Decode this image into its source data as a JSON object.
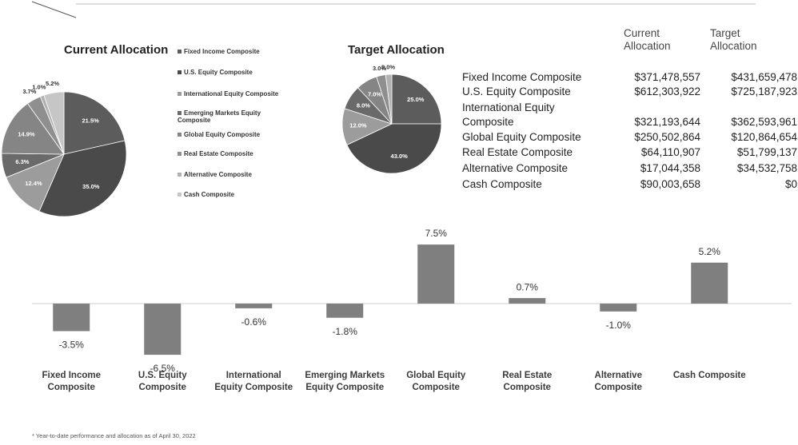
{
  "footnote": "* Year-to-date performance and allocation as of April 30, 2022",
  "table": {
    "columns": [
      "Current Allocation",
      "Target Allocation"
    ],
    "rows": [
      [
        "Fixed Income Composite",
        "$371,478,557",
        "$431,659,478"
      ],
      [
        "U.S. Equity Composite",
        "$612,303,922",
        "$725,187,923"
      ],
      [
        "International Equity Composite",
        "$321,193,644",
        "$362,593,961"
      ],
      [
        "Global Equity Composite",
        "$250,502,864",
        "$120,864,654"
      ],
      [
        "Real Estate Composite",
        "$64,110,907",
        "$51,799,137"
      ],
      [
        "Alternative Composite",
        "$17,044,358",
        "$34,532,758"
      ],
      [
        "Cash Composite",
        "$90,003,658",
        "$0"
      ]
    ]
  },
  "chart_data": [
    {
      "type": "pie",
      "title": "Current Allocation",
      "categories": [
        "Fixed Income Composite",
        "U.S. Equity Composite",
        "International Equity Composite",
        "Emerging Markets Equity Composite",
        "Global Equity Composite",
        "Real Estate Composite",
        "Alternative Composite",
        "Cash Composite"
      ],
      "values": [
        21.5,
        35.0,
        12.4,
        6.3,
        14.9,
        3.7,
        1.0,
        5.2
      ],
      "value_labels": [
        "21.5%",
        "35.0%",
        "12.4%",
        "6.3%",
        "14.9%",
        "3.7%",
        "1.0%",
        "5.2%"
      ],
      "colors": [
        "#5c5c5c",
        "#4a4a4a",
        "#9c9c9c",
        "#6a6a6a",
        "#858585",
        "#8f8f8f",
        "#b2b2b2",
        "#c6c6c6"
      ]
    },
    {
      "type": "pie",
      "title": "Target Allocation",
      "values": [
        25.0,
        43.0,
        12.0,
        8.0,
        7.0,
        3.0,
        2.0
      ],
      "value_labels": [
        "25.0%",
        "43.0%",
        "12.0%",
        "8.0%",
        "7.0%",
        "3.0%",
        "2.0%"
      ],
      "colors": [
        "#5c5c5c",
        "#4a4a4a",
        "#9c9c9c",
        "#6a6a6a",
        "#858585",
        "#8f8f8f",
        "#b2b2b2"
      ]
    },
    {
      "type": "bar",
      "categories": [
        "Fixed Income Composite",
        "U.S. Equity Composite",
        "International Equity Composite",
        "Emerging Markets Equity Composite",
        "Global Equity Composite",
        "Real Estate Composite",
        "Alternative Composite",
        "Cash Composite"
      ],
      "values": [
        -3.5,
        -6.5,
        -0.6,
        -1.8,
        7.5,
        0.7,
        -1.0,
        5.2
      ],
      "value_labels": [
        "-3.5%",
        "-6.5%",
        "-0.6%",
        "-1.8%",
        "7.5%",
        "0.7%",
        "-1.0%",
        "5.2%"
      ],
      "color": "#7f7f7f"
    }
  ]
}
